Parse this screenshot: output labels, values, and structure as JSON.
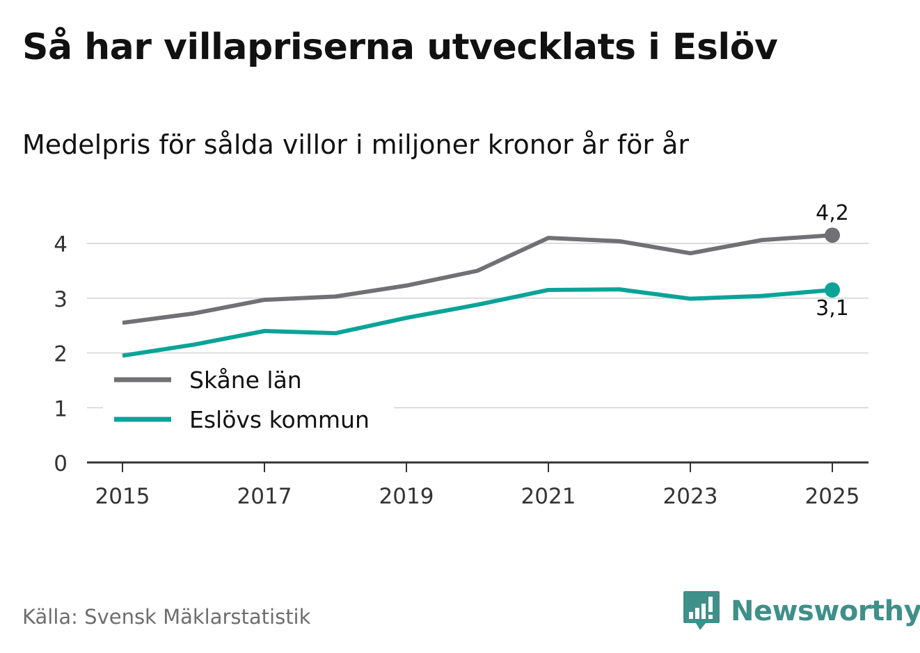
{
  "title": "Så har villapriserna utvecklats i Eslöv",
  "subtitle": "Medelpris för sålda villor i miljoner kronor år för år",
  "source": "Källa: Svensk Mäklarstatistik",
  "brand": {
    "name": "Newsworthy",
    "icon": "newsworthy-logo-icon",
    "color": "#3f8f8a"
  },
  "chart_data": {
    "type": "line",
    "x": [
      2015,
      2016,
      2017,
      2018,
      2019,
      2020,
      2021,
      2022,
      2023,
      2024,
      2025
    ],
    "x_ticks": [
      "2015",
      "2017",
      "2019",
      "2021",
      "2023",
      "2025"
    ],
    "y_ticks": [
      "0",
      "1",
      "2",
      "3",
      "4"
    ],
    "ylim": [
      0,
      4.5
    ],
    "xlim": [
      2014.5,
      2025.5
    ],
    "grid": true,
    "legend_position": "bottom-left",
    "series": [
      {
        "name": "Skåne län",
        "color": "#707075",
        "values": [
          2.55,
          2.72,
          2.97,
          3.03,
          3.23,
          3.5,
          4.1,
          4.04,
          3.82,
          4.06,
          4.15
        ],
        "end_label": "4,2"
      },
      {
        "name": "Eslövs kommun",
        "color": "#0aa398",
        "values": [
          1.95,
          2.15,
          2.4,
          2.36,
          2.64,
          2.88,
          3.15,
          3.16,
          2.99,
          3.04,
          3.15
        ],
        "end_label": "3,1"
      }
    ]
  }
}
